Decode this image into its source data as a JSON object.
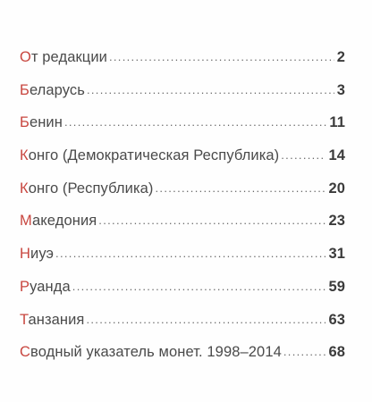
{
  "toc": {
    "entries": [
      {
        "initial": "О",
        "rest": "т редакции",
        "page": "2"
      },
      {
        "initial": "Б",
        "rest": "еларусь",
        "page": "3"
      },
      {
        "initial": "Б",
        "rest": "енин",
        "page": "11"
      },
      {
        "initial": "К",
        "rest": "онго (Демократическая Республика)",
        "page": "14"
      },
      {
        "initial": "К",
        "rest": "онго (Республика)",
        "page": "20"
      },
      {
        "initial": "М",
        "rest": "акедония",
        "page": "23"
      },
      {
        "initial": "Н",
        "rest": "иуэ",
        "page": "31"
      },
      {
        "initial": "Р",
        "rest": "уанда",
        "page": "59"
      },
      {
        "initial": "Т",
        "rest": "анзания",
        "page": "63"
      },
      {
        "initial": "С",
        "rest": "водный указатель монет. 1998–2014",
        "page": "68"
      }
    ]
  },
  "colors": {
    "initial_accent": "#c8463f",
    "text": "#4a4a4a",
    "page_number": "#3b3b3b"
  }
}
